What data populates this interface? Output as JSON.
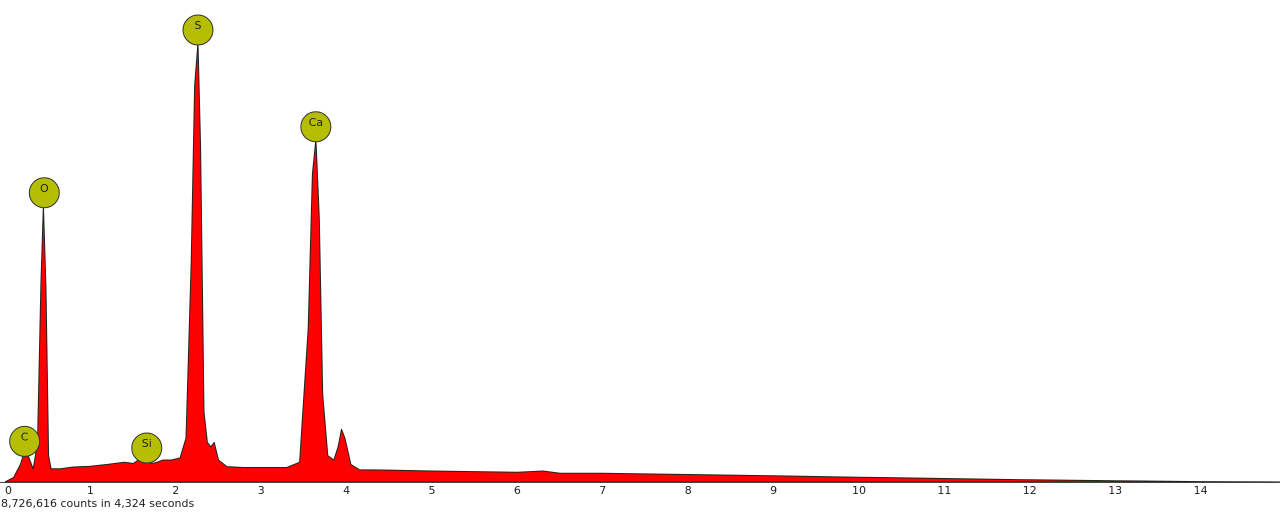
{
  "chart_data": {
    "type": "area",
    "title": "",
    "xlabel": "",
    "ylabel": "",
    "xlim": [
      0,
      15
    ],
    "ylim": [
      0,
      1
    ],
    "x_ticks": [
      "0",
      "1",
      "2",
      "3",
      "4",
      "5",
      "6",
      "7",
      "8",
      "9",
      "10",
      "11",
      "12",
      "13",
      "14"
    ],
    "grid": false,
    "colors": {
      "fill": "#ff0000",
      "stroke": "#222222",
      "marker_fill": "#b5be00",
      "marker_stroke": "#333333"
    },
    "spectrum": {
      "x": [
        0.0,
        0.1,
        0.18,
        0.22,
        0.27,
        0.33,
        0.38,
        0.42,
        0.45,
        0.48,
        0.51,
        0.54,
        0.58,
        0.65,
        0.8,
        1.0,
        1.2,
        1.4,
        1.5,
        1.6,
        1.66,
        1.72,
        1.78,
        1.85,
        1.95,
        2.05,
        2.12,
        2.18,
        2.22,
        2.26,
        2.29,
        2.33,
        2.37,
        2.41,
        2.45,
        2.5,
        2.6,
        2.8,
        3.0,
        3.3,
        3.45,
        3.55,
        3.6,
        3.64,
        3.68,
        3.72,
        3.78,
        3.85,
        3.9,
        3.94,
        3.98,
        4.05,
        4.15,
        4.5,
        5.0,
        6.0,
        6.3,
        6.5,
        7.0,
        8.0,
        9.0,
        10.0,
        11.0,
        12.0,
        13.0,
        14.0,
        15.0
      ],
      "y": [
        0.0,
        0.01,
        0.04,
        0.065,
        0.06,
        0.03,
        0.09,
        0.45,
        0.63,
        0.44,
        0.06,
        0.03,
        0.03,
        0.03,
        0.034,
        0.036,
        0.04,
        0.045,
        0.042,
        0.055,
        0.05,
        0.042,
        0.045,
        0.05,
        0.05,
        0.055,
        0.1,
        0.5,
        0.9,
        1.0,
        0.76,
        0.16,
        0.09,
        0.08,
        0.09,
        0.05,
        0.035,
        0.033,
        0.033,
        0.033,
        0.045,
        0.35,
        0.7,
        0.78,
        0.6,
        0.2,
        0.06,
        0.05,
        0.08,
        0.12,
        0.1,
        0.04,
        0.028,
        0.027,
        0.025,
        0.022,
        0.025,
        0.02,
        0.02,
        0.017,
        0.014,
        0.011,
        0.008,
        0.005,
        0.003,
        0.001,
        0.0
      ]
    },
    "peaks": [
      {
        "label": "C",
        "x": 0.23,
        "y": 0.065
      },
      {
        "label": "O",
        "x": 0.46,
        "y": 0.63
      },
      {
        "label": "Si",
        "x": 1.66,
        "y": 0.05
      },
      {
        "label": "S",
        "x": 2.26,
        "y": 1.0
      },
      {
        "label": "Ca",
        "x": 3.64,
        "y": 0.78
      }
    ],
    "footer": "8,726,616 counts in 4,324 seconds"
  }
}
